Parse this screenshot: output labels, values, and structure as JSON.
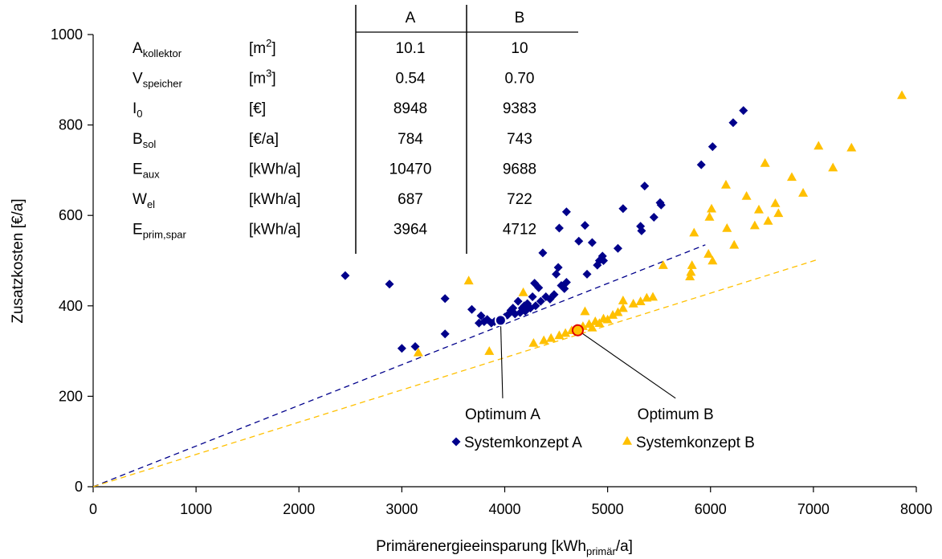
{
  "chart_data": {
    "type": "scatter",
    "xlabel": {
      "main": "Primärenergieeinsparung [kWh",
      "sub": "primär",
      "tail": "/a]"
    },
    "ylabel": "Zusatzkosten [€/a]",
    "xlim": [
      0,
      8000
    ],
    "ylim": [
      0,
      1000
    ],
    "x_ticks": [
      0,
      1000,
      2000,
      3000,
      4000,
      5000,
      6000,
      7000,
      8000
    ],
    "y_ticks": [
      0,
      200,
      400,
      600,
      800,
      1000
    ],
    "grid": false,
    "legend_position": "bottom-center",
    "series": [
      {
        "name": "Systemkonzept A",
        "marker": "diamond",
        "color": "#00008B",
        "points": [
          [
            2450,
            467
          ],
          [
            2880,
            448
          ],
          [
            3000,
            306
          ],
          [
            3130,
            310
          ],
          [
            3420,
            416
          ],
          [
            3420,
            338
          ],
          [
            3680,
            392
          ],
          [
            3750,
            362
          ],
          [
            3770,
            378
          ],
          [
            3800,
            365
          ],
          [
            3830,
            370
          ],
          [
            3870,
            362
          ],
          [
            3900,
            365
          ],
          [
            3950,
            368
          ],
          [
            4000,
            375
          ],
          [
            4030,
            380
          ],
          [
            4060,
            390
          ],
          [
            4080,
            395
          ],
          [
            4100,
            382
          ],
          [
            4130,
            410
          ],
          [
            4150,
            385
          ],
          [
            4170,
            395
          ],
          [
            4190,
            400
          ],
          [
            4200,
            388
          ],
          [
            4220,
            405
          ],
          [
            4250,
            395
          ],
          [
            4270,
            420
          ],
          [
            4290,
            450
          ],
          [
            4300,
            400
          ],
          [
            4330,
            440
          ],
          [
            4350,
            410
          ],
          [
            4370,
            517
          ],
          [
            4400,
            420
          ],
          [
            4440,
            415
          ],
          [
            4480,
            425
          ],
          [
            4500,
            470
          ],
          [
            4520,
            485
          ],
          [
            4530,
            572
          ],
          [
            4550,
            445
          ],
          [
            4580,
            438
          ],
          [
            4600,
            452
          ],
          [
            4600,
            608
          ],
          [
            4720,
            543
          ],
          [
            4780,
            578
          ],
          [
            4800,
            470
          ],
          [
            4850,
            540
          ],
          [
            4900,
            490
          ],
          [
            4920,
            500
          ],
          [
            4950,
            510
          ],
          [
            4960,
            500
          ],
          [
            5100,
            527
          ],
          [
            5150,
            615
          ],
          [
            5320,
            576
          ],
          [
            5330,
            566
          ],
          [
            5360,
            665
          ],
          [
            5450,
            596
          ],
          [
            5510,
            628
          ],
          [
            5520,
            623
          ],
          [
            5910,
            712
          ],
          [
            6020,
            752
          ],
          [
            6220,
            805
          ],
          [
            6320,
            832
          ]
        ]
      },
      {
        "name": "Systemkonzept B",
        "marker": "triangle",
        "color": "#FFC000",
        "points": [
          [
            3160,
            297
          ],
          [
            3650,
            456
          ],
          [
            3850,
            300
          ],
          [
            4180,
            430
          ],
          [
            4280,
            318
          ],
          [
            4380,
            324
          ],
          [
            4450,
            329
          ],
          [
            4530,
            335
          ],
          [
            4590,
            340
          ],
          [
            4650,
            346
          ],
          [
            4700,
            350
          ],
          [
            4760,
            355
          ],
          [
            4780,
            388
          ],
          [
            4820,
            360
          ],
          [
            4850,
            352
          ],
          [
            4880,
            366
          ],
          [
            4920,
            362
          ],
          [
            4960,
            372
          ],
          [
            5000,
            370
          ],
          [
            5050,
            380
          ],
          [
            5100,
            386
          ],
          [
            5150,
            395
          ],
          [
            5150,
            412
          ],
          [
            5250,
            405
          ],
          [
            5320,
            410
          ],
          [
            5380,
            418
          ],
          [
            5440,
            420
          ],
          [
            5540,
            490
          ],
          [
            5800,
            465
          ],
          [
            5810,
            475
          ],
          [
            5820,
            490
          ],
          [
            5840,
            562
          ],
          [
            5980,
            515
          ],
          [
            5990,
            597
          ],
          [
            6010,
            615
          ],
          [
            6020,
            500
          ],
          [
            6150,
            668
          ],
          [
            6160,
            572
          ],
          [
            6230,
            535
          ],
          [
            6350,
            643
          ],
          [
            6430,
            578
          ],
          [
            6470,
            613
          ],
          [
            6530,
            716
          ],
          [
            6560,
            588
          ],
          [
            6630,
            627
          ],
          [
            6660,
            605
          ],
          [
            6790,
            685
          ],
          [
            6900,
            650
          ],
          [
            7050,
            754
          ],
          [
            7190,
            706
          ],
          [
            7370,
            750
          ],
          [
            7860,
            866
          ]
        ]
      }
    ],
    "trend_lines": [
      {
        "series": "Systemkonzept A",
        "color": "#00008B",
        "from": [
          0,
          0
        ],
        "to": [
          5950,
          535
        ]
      },
      {
        "series": "Systemkonzept B",
        "color": "#FFC000",
        "from": [
          0,
          0
        ],
        "to": [
          7050,
          503
        ]
      }
    ],
    "optima": [
      {
        "label": "Optimum A",
        "point": [
          3960,
          368
        ],
        "fill": "#00008B",
        "stroke": "#ffffff",
        "label_at": [
          3980,
          185
        ]
      },
      {
        "label": "Optimum B",
        "point": [
          4710,
          346
        ],
        "fill": "#FFC000",
        "stroke": "#E00000",
        "label_at": [
          5660,
          185
        ]
      }
    ],
    "table": {
      "headers": [
        "",
        "",
        "A",
        "B"
      ],
      "rows": [
        {
          "symbol": "A",
          "sub": "kollektor",
          "unit": "[m",
          "unit_sup": "2",
          "unit_tail": "]",
          "a": "10.1",
          "b": "10"
        },
        {
          "symbol": "V",
          "sub": "speicher",
          "unit": "[m",
          "unit_sup": "3",
          "unit_tail": "]",
          "a": "0.54",
          "b": "0.70"
        },
        {
          "symbol": "I",
          "sub": "0",
          "unit": "[€]",
          "unit_sup": "",
          "unit_tail": "",
          "a": "8948",
          "b": "9383"
        },
        {
          "symbol": "B",
          "sub": "sol",
          "unit": "[€/a]",
          "unit_sup": "",
          "unit_tail": "",
          "a": "784",
          "b": "743"
        },
        {
          "symbol": "E",
          "sub": "aux",
          "unit": "[kWh/a]",
          "unit_sup": "",
          "unit_tail": "",
          "a": "10470",
          "b": "9688"
        },
        {
          "symbol": "W",
          "sub": "el",
          "unit": "[kWh/a]",
          "unit_sup": "",
          "unit_tail": "",
          "a": "687",
          "b": "722"
        },
        {
          "symbol": "E",
          "sub": "prim,spar",
          "unit": "[kWh/a]",
          "unit_sup": "",
          "unit_tail": "",
          "a": "3964",
          "b": "4712"
        }
      ]
    }
  }
}
